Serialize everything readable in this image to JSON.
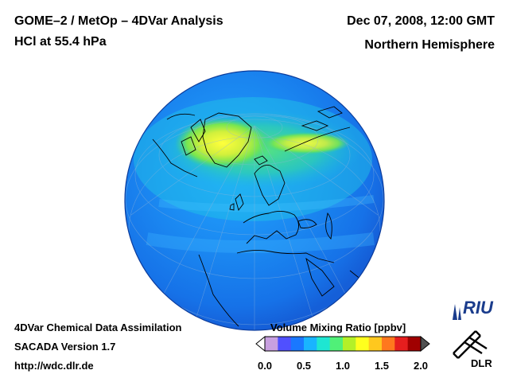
{
  "header": {
    "title_line1": "GOME–2 / MetOp – 4DVar Analysis",
    "title_line2": "HCl at 55.4 hPa",
    "date": "Dec 07, 2008, 12:00 GMT",
    "region": "Northern Hemisphere"
  },
  "footer": {
    "line1": "4DVar Chemical Data Assimilation",
    "line2": "SACADA Version 1.7",
    "line3": "http://wdc.dlr.de"
  },
  "colorbar": {
    "title": "Volume Mixing Ratio [ppbv]",
    "ticks": [
      "0.0",
      "0.5",
      "1.0",
      "1.5",
      "2.0"
    ],
    "colors": [
      "#ffffff",
      "#c8a0e0",
      "#5050ff",
      "#1a78ff",
      "#19b4ff",
      "#1ee6d2",
      "#50f078",
      "#b4f028",
      "#ffff1e",
      "#ffc81e",
      "#ff781e",
      "#e61e1e",
      "#a00000",
      "#505050"
    ]
  },
  "logos": {
    "riu": "RIU",
    "dlr": "DLR"
  },
  "map": {
    "ocean_color": "#2b8cf0",
    "land_outline": "#000000"
  }
}
